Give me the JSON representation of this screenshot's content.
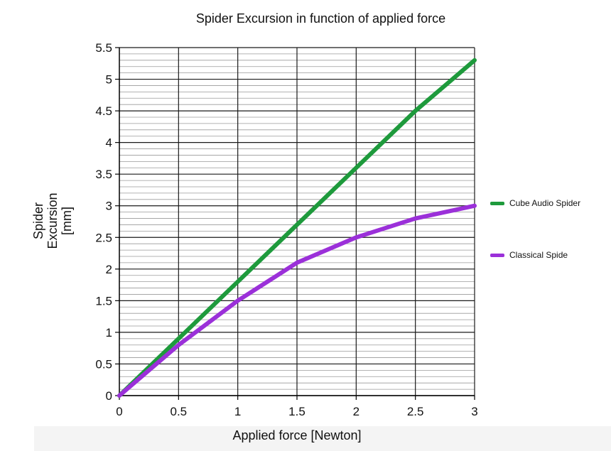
{
  "chart_data": {
    "type": "line",
    "title": "Spider Excursion in function of applied force",
    "xlabel": "Applied force [Newton]",
    "ylabel_lines": [
      "Spider",
      "Excursion",
      "[mm]"
    ],
    "x": [
      0,
      0.5,
      1,
      1.5,
      2,
      2.5,
      3
    ],
    "xlim": [
      0,
      3
    ],
    "ylim": [
      0,
      5.5
    ],
    "x_ticks": [
      0,
      0.5,
      1,
      1.5,
      2,
      2.5,
      3
    ],
    "x_tick_labels": [
      "0",
      "0.5",
      "1",
      "1.5",
      "2",
      "2.5",
      "3"
    ],
    "y_ticks": [
      0,
      0.5,
      1,
      1.5,
      2,
      2.5,
      3,
      3.5,
      4,
      4.5,
      5,
      5.5
    ],
    "y_tick_labels": [
      "0",
      "0.5",
      "1",
      "1.5",
      "2",
      "2.5",
      "3",
      "3.5",
      "4",
      "4.5",
      "5",
      "5.5"
    ],
    "grid": true,
    "minor_grid_step": 0.1,
    "legend_position": "right",
    "series": [
      {
        "name": "Cube Audio Spider",
        "color": "#1e9a3c",
        "values": [
          0,
          0.9,
          1.8,
          2.7,
          3.6,
          4.5,
          5.3
        ]
      },
      {
        "name": "Classical Spide",
        "color": "#9b30d9",
        "values": [
          0,
          0.8,
          1.5,
          2.1,
          2.5,
          2.8,
          3.0
        ]
      }
    ]
  }
}
